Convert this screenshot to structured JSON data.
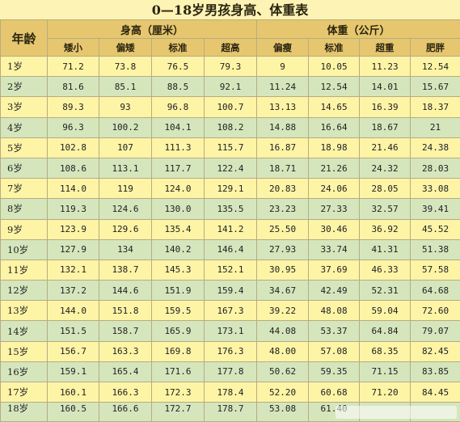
{
  "title": "0—18岁男孩身高、体重表",
  "headers": {
    "age": "年龄",
    "height_group": "身高（厘米）",
    "weight_group": "体重（公斤）",
    "height_cols": [
      "矮小",
      "偏矮",
      "标准",
      "超高"
    ],
    "weight_cols": [
      "偏瘦",
      "标准",
      "超重",
      "肥胖"
    ]
  },
  "rows": [
    {
      "age": "1岁",
      "values": [
        "71.2",
        "73.8",
        "76.5",
        "79.3",
        "9",
        "10.05",
        "11.23",
        "12.54"
      ]
    },
    {
      "age": "2岁",
      "values": [
        "81.6",
        "85.1",
        "88.5",
        "92.1",
        "11.24",
        "12.54",
        "14.01",
        "15.67"
      ]
    },
    {
      "age": "3岁",
      "values": [
        "89.3",
        "93",
        "96.8",
        "100.7",
        "13.13",
        "14.65",
        "16.39",
        "18.37"
      ]
    },
    {
      "age": "4岁",
      "values": [
        "96.3",
        "100.2",
        "104.1",
        "108.2",
        "14.88",
        "16.64",
        "18.67",
        "21"
      ]
    },
    {
      "age": "5岁",
      "values": [
        "102.8",
        "107",
        "111.3",
        "115.7",
        "16.87",
        "18.98",
        "21.46",
        "24.38"
      ]
    },
    {
      "age": "6岁",
      "values": [
        "108.6",
        "113.1",
        "117.7",
        "122.4",
        "18.71",
        "21.26",
        "24.32",
        "28.03"
      ]
    },
    {
      "age": "7岁",
      "values": [
        "114.0",
        "119",
        "124.0",
        "129.1",
        "20.83",
        "24.06",
        "28.05",
        "33.08"
      ]
    },
    {
      "age": "8岁",
      "values": [
        "119.3",
        "124.6",
        "130.0",
        "135.5",
        "23.23",
        "27.33",
        "32.57",
        "39.41"
      ]
    },
    {
      "age": "9岁",
      "values": [
        "123.9",
        "129.6",
        "135.4",
        "141.2",
        "25.50",
        "30.46",
        "36.92",
        "45.52"
      ]
    },
    {
      "age": "10岁",
      "values": [
        "127.9",
        "134",
        "140.2",
        "146.4",
        "27.93",
        "33.74",
        "41.31",
        "51.38"
      ]
    },
    {
      "age": "11岁",
      "values": [
        "132.1",
        "138.7",
        "145.3",
        "152.1",
        "30.95",
        "37.69",
        "46.33",
        "57.58"
      ]
    },
    {
      "age": "12岁",
      "values": [
        "137.2",
        "144.6",
        "151.9",
        "159.4",
        "34.67",
        "42.49",
        "52.31",
        "64.68"
      ]
    },
    {
      "age": "13岁",
      "values": [
        "144.0",
        "151.8",
        "159.5",
        "167.3",
        "39.22",
        "48.08",
        "59.04",
        "72.60"
      ]
    },
    {
      "age": "14岁",
      "values": [
        "151.5",
        "158.7",
        "165.9",
        "173.1",
        "44.08",
        "53.37",
        "64.84",
        "79.07"
      ]
    },
    {
      "age": "15岁",
      "values": [
        "156.7",
        "163.3",
        "169.8",
        "176.3",
        "48.00",
        "57.08",
        "68.35",
        "82.45"
      ]
    },
    {
      "age": "16岁",
      "values": [
        "159.1",
        "165.4",
        "171.6",
        "177.8",
        "50.62",
        "59.35",
        "71.15",
        "83.85"
      ]
    },
    {
      "age": "17岁",
      "values": [
        "160.1",
        "166.3",
        "172.3",
        "178.4",
        "52.20",
        "60.68",
        "71.20",
        "84.45"
      ]
    },
    {
      "age": "18岁",
      "values": [
        "160.5",
        "166.6",
        "172.7",
        "178.7",
        "53.08",
        "61.40",
        "",
        ""
      ]
    }
  ]
}
